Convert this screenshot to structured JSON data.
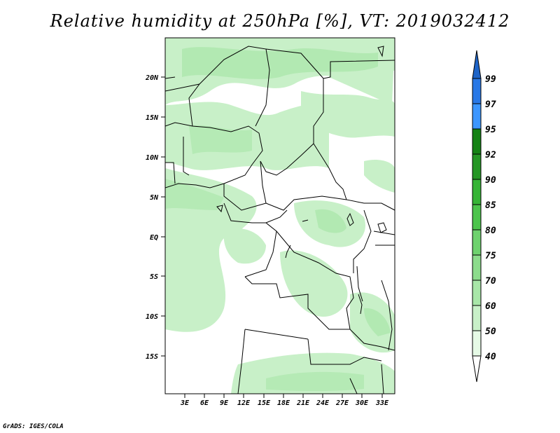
{
  "title": "Relative humidity at 250hPa [%], VT: 2019032412",
  "footer": "GrADS: IGES/COLA",
  "map": {
    "lat_labels": [
      "20N",
      "15N",
      "10N",
      "5N",
      "EQ",
      "5S",
      "10S",
      "15S"
    ],
    "lon_labels": [
      "3E",
      "6E",
      "9E",
      "12E",
      "15E",
      "18E",
      "21E",
      "24E",
      "27E",
      "30E",
      "33E"
    ]
  },
  "colorbar": {
    "labels": [
      "40",
      "50",
      "60",
      "70",
      "75",
      "80",
      "85",
      "90",
      "92",
      "95",
      "97",
      "99"
    ],
    "colors": [
      "#ffffff",
      "#e6fae6",
      "#c8f0c8",
      "#a8e6a8",
      "#8cdc8c",
      "#6ed26e",
      "#4cc44c",
      "#36b436",
      "#249624",
      "#148214",
      "#3c96ff",
      "#2878e6",
      "#1e64c8"
    ]
  },
  "chart_data": {
    "type": "heatmap",
    "title": "Relative humidity at 250hPa [%], VT: 2019032412",
    "variable": "Relative humidity",
    "units": "%",
    "level": "250hPa",
    "valid_time": "2019032412",
    "x_range": [
      0,
      35
    ],
    "y_range": [
      -20,
      24
    ],
    "levels": [
      40,
      50,
      60,
      70,
      75,
      80,
      85,
      90,
      92,
      95,
      97,
      99
    ]
  }
}
